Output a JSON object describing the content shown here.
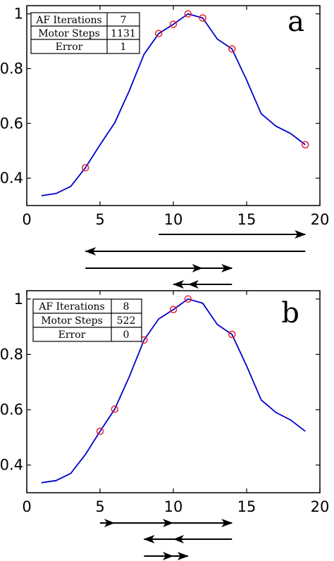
{
  "chart_data": [
    {
      "type": "line",
      "panel_label": "a",
      "x": [
        1,
        2,
        3,
        4,
        5,
        6,
        7,
        8,
        9,
        10,
        11,
        12,
        13,
        14,
        15,
        16,
        17,
        18,
        19
      ],
      "series": [
        {
          "values": [
            0.336,
            0.344,
            0.37,
            0.438,
            0.522,
            0.602,
            0.72,
            0.852,
            0.928,
            0.962,
            1.0,
            0.985,
            0.908,
            0.872,
            0.758,
            0.635,
            0.59,
            0.563,
            0.522
          ],
          "color": "#0000cc"
        }
      ],
      "markers": {
        "x": [
          4,
          9,
          10,
          11,
          12,
          14,
          19
        ],
        "y": [
          0.438,
          0.928,
          0.962,
          1.0,
          0.985,
          0.872,
          0.522
        ],
        "color": "#e8202a",
        "shape": "circle"
      },
      "xticks": [
        "0",
        "5",
        "10",
        "15",
        "20"
      ],
      "yticks": [
        "0.4",
        "0.6",
        "0.8",
        "1"
      ],
      "xlim": [
        0,
        20
      ],
      "ylim": [
        0.3,
        1.03
      ],
      "grid": false,
      "table": [
        {
          "label": "AF Iterations",
          "value": "7"
        },
        {
          "label": "Motor Steps",
          "value": "1131"
        },
        {
          "label": "Error",
          "value": "1"
        }
      ],
      "arrows": [
        {
          "from": 9,
          "to": 19
        },
        {
          "from": 19,
          "to": 4
        },
        {
          "from": 4,
          "to": 14,
          "mid_head": 12
        },
        {
          "from": 14,
          "to": 10,
          "mid_head": 11
        }
      ]
    },
    {
      "type": "line",
      "panel_label": "b",
      "x": [
        1,
        2,
        3,
        4,
        5,
        6,
        7,
        8,
        9,
        10,
        11,
        12,
        13,
        14,
        15,
        16,
        17,
        18,
        19
      ],
      "series": [
        {
          "values": [
            0.336,
            0.344,
            0.37,
            0.438,
            0.522,
            0.602,
            0.72,
            0.852,
            0.928,
            0.962,
            1.0,
            0.985,
            0.908,
            0.872,
            0.758,
            0.635,
            0.59,
            0.563,
            0.522
          ],
          "color": "#0000cc"
        }
      ],
      "markers": {
        "x": [
          5,
          6,
          8,
          10,
          11,
          14
        ],
        "y": [
          0.522,
          0.602,
          0.852,
          0.962,
          1.0,
          0.872
        ],
        "color": "#e8202a",
        "shape": "circle"
      },
      "xticks": [
        "0",
        "5",
        "10",
        "15",
        "20"
      ],
      "yticks": [
        "0.4",
        "0.6",
        "0.8",
        "1"
      ],
      "xlim": [
        0,
        20
      ],
      "ylim": [
        0.3,
        1.03
      ],
      "grid": false,
      "table": [
        {
          "label": "AF Iterations",
          "value": "8"
        },
        {
          "label": "Motor Steps",
          "value": "522"
        },
        {
          "label": "Error",
          "value": "0"
        }
      ],
      "arrows": [
        {
          "from": 5,
          "to": 14,
          "mid_head": [
            6,
            10
          ]
        },
        {
          "from": 14,
          "to": 8,
          "mid_head": 10
        },
        {
          "from": 8,
          "to": 11,
          "mid_head": 10
        }
      ]
    }
  ]
}
